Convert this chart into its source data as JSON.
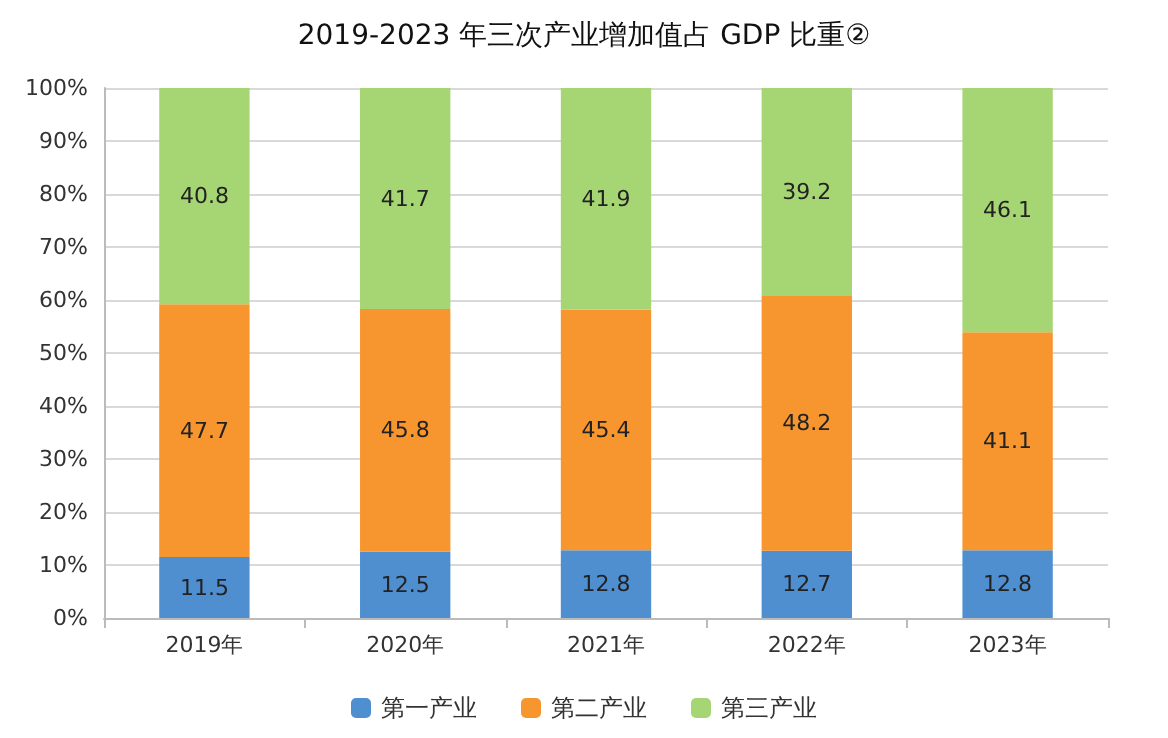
{
  "chart_data": {
    "type": "bar",
    "title": "2019-2023 年三次产业增加值占 GDP 比重②",
    "categories": [
      "2019年",
      "2020年",
      "2021年",
      "2022年",
      "2023年"
    ],
    "stacked": true,
    "series": [
      {
        "name": "第一产业",
        "color": "#4f8fd0",
        "values": [
          11.5,
          12.5,
          12.8,
          12.7,
          12.8
        ]
      },
      {
        "name": "第二产业",
        "color": "#f7962e",
        "values": [
          47.7,
          45.8,
          45.4,
          48.2,
          41.1
        ]
      },
      {
        "name": "第三产业",
        "color": "#a6d673",
        "values": [
          40.8,
          41.7,
          41.9,
          39.2,
          46.1
        ]
      }
    ],
    "ylim": [
      0,
      100
    ],
    "yticks": [
      {
        "value": 0,
        "label": "0%"
      },
      {
        "value": 10,
        "label": "10%"
      },
      {
        "value": 20,
        "label": "20%"
      },
      {
        "value": 30,
        "label": "30%"
      },
      {
        "value": 40,
        "label": "40%"
      },
      {
        "value": 50,
        "label": "50%"
      },
      {
        "value": 60,
        "label": "60%"
      },
      {
        "value": 70,
        "label": "70%"
      },
      {
        "value": 80,
        "label": "80%"
      },
      {
        "value": 90,
        "label": "90%"
      },
      {
        "value": 100,
        "label": "100%"
      }
    ],
    "grid": "y",
    "legend": "bottom",
    "data_labels": true
  }
}
